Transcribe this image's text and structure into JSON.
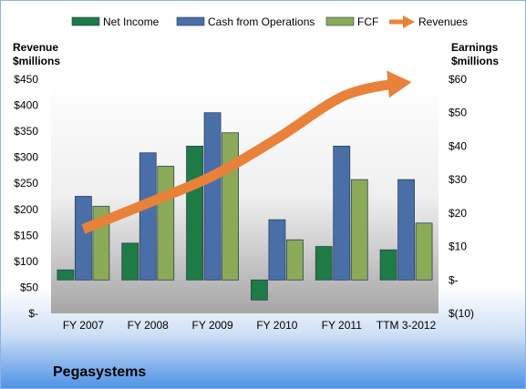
{
  "company": "Pegasystems",
  "chart_data": {
    "type": "bar",
    "categories": [
      "FY 2007",
      "FY 2008",
      "FY 2009",
      "FY 2010",
      "FY 2011",
      "TTM 3-2012"
    ],
    "series": [
      {
        "name": "Net Income",
        "axis": "right",
        "values": [
          3,
          11,
          40,
          -6,
          10,
          9
        ],
        "color": "#1e7b46"
      },
      {
        "name": "Cash from Operations",
        "axis": "right",
        "values": [
          25,
          38,
          50,
          18,
          40,
          30
        ],
        "color": "#4a6fa8"
      },
      {
        "name": "FCF",
        "axis": "right",
        "values": [
          22,
          34,
          44,
          12,
          30,
          17
        ],
        "color": "#8bab58"
      },
      {
        "name": "Revenues",
        "axis": "left",
        "type": "arrow",
        "values": [
          162,
          212,
          264,
          336,
          416,
          441
        ],
        "color": "#e8823a"
      }
    ],
    "y_left": {
      "label_line1": "Revenue",
      "label_line2": "$millions",
      "ylim": [
        0,
        450
      ],
      "ticks": [
        0,
        50,
        100,
        150,
        200,
        250,
        300,
        350,
        400,
        450
      ],
      "tick_labels": [
        "$-",
        "$50",
        "$100",
        "$150",
        "$200",
        "$250",
        "$300",
        "$350",
        "$400",
        "$450"
      ]
    },
    "y_right": {
      "label_line1": "Earnings",
      "label_line2": "$millions",
      "ylim": [
        -10,
        60
      ],
      "ticks": [
        -10,
        0,
        10,
        20,
        30,
        40,
        50,
        60
      ],
      "tick_labels": [
        "$(10)",
        "$-",
        "$10",
        "$20",
        "$30",
        "$40",
        "$50",
        "$60"
      ]
    },
    "legend_position": "top",
    "grid": false
  }
}
